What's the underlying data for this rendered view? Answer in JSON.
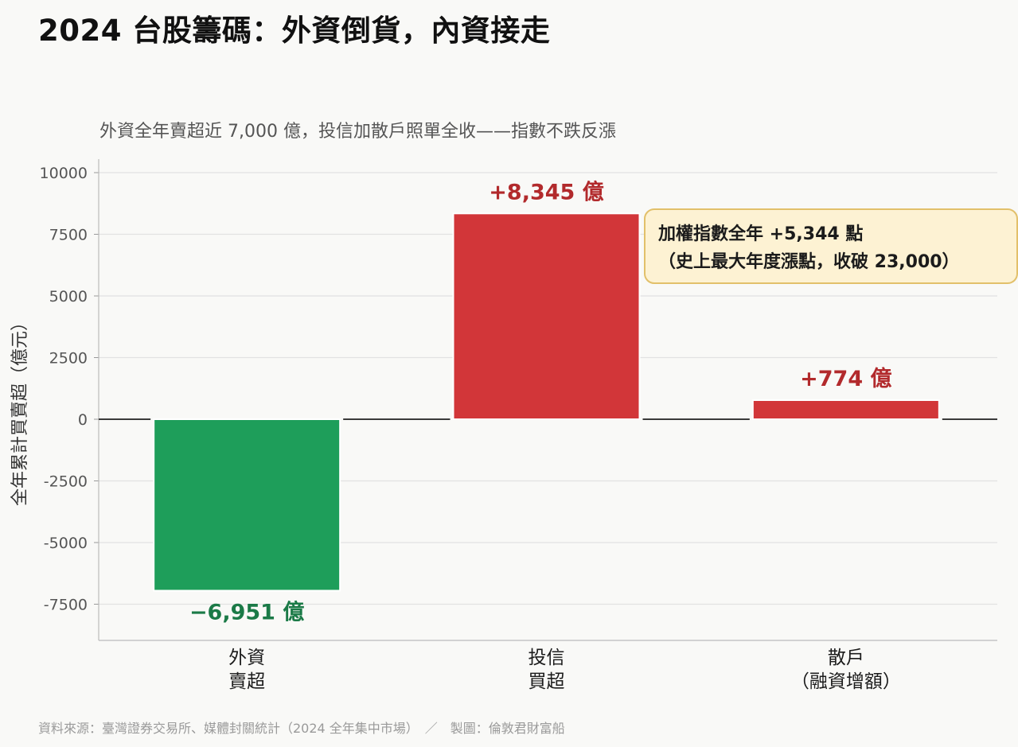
{
  "title": "2024 台股籌碼：外資倒貨，內資接走",
  "source": "資料來源：臺灣證券交易所、媒體封關統計（2024 全年集中市場）　／　製圖：倫敦君財富船",
  "chart_data": {
    "type": "bar",
    "subtitle": "外資全年賣超近 7,000 億，投信加散戶照單全收——指數不跌反漲",
    "ylabel": "全年累計買賣超（億元）",
    "xlabel": "",
    "ylim": [
      -9000,
      10500
    ],
    "yticks": [
      10000,
      7500,
      5000,
      2500,
      0,
      -2500,
      -5000,
      -7500
    ],
    "grid": true,
    "categories": [
      [
        "外資",
        "賣超"
      ],
      [
        "投信",
        "買超"
      ],
      [
        "散戶",
        "（融資增額）"
      ]
    ],
    "values": [
      -6951,
      8345,
      774
    ],
    "value_labels": [
      "−6,951 億",
      "+8,345 億",
      "+774 億"
    ],
    "colors": [
      "#1e9e5a",
      "#d23639",
      "#d23639"
    ],
    "label_colors": [
      "#1b7a47",
      "#b22a2c",
      "#b22a2c"
    ],
    "annotation": {
      "lines": [
        "加權指數全年 +5,344 點",
        "（史上最大年度漲點，收破 23,000）"
      ],
      "background": "#fdf2d3",
      "border": "#e2c06a"
    }
  }
}
